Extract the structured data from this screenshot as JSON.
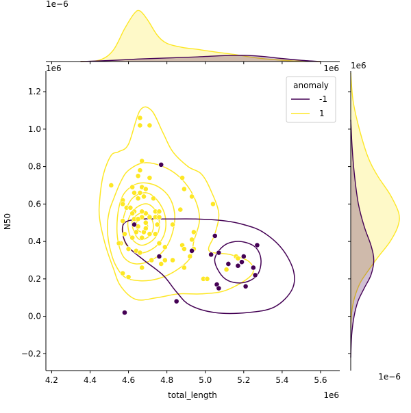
{
  "chart_data": {
    "type": "scatter",
    "xlabel": "total_length",
    "ylabel": "N50",
    "x_offset_label": "1e6",
    "y_offset_label": "1e6",
    "top_margin_offset_label": "1e−6",
    "right_margin_offset_label": "1e−6",
    "xlim": [
      4.17,
      5.7
    ],
    "ylim": [
      -0.29,
      1.31
    ],
    "x_ticks": [
      4.2,
      4.4,
      4.6,
      4.8,
      5.0,
      5.2,
      5.4,
      5.6
    ],
    "x_tick_labels": [
      "4.2",
      "4.4",
      "4.6",
      "4.8",
      "5.0",
      "5.2",
      "5.4",
      "5.6"
    ],
    "y_ticks": [
      -0.2,
      0.0,
      0.2,
      0.4,
      0.6,
      0.8,
      1.0,
      1.2
    ],
    "y_tick_labels": [
      "−0.2",
      "0.0",
      "0.2",
      "0.4",
      "0.6",
      "0.8",
      "1.0",
      "1.2"
    ],
    "grid": false,
    "legend": {
      "title": "anomaly",
      "placement": "top-right",
      "entries": [
        {
          "label": "-1",
          "color": "#440154"
        },
        {
          "label": "1",
          "color": "#fde725"
        }
      ]
    },
    "colors": {
      "anomaly": "#440154",
      "normal": "#fde725"
    },
    "series": [
      {
        "name": "1",
        "color": "#fde725",
        "points": [
          [
            4.66,
            1.06
          ],
          [
            4.66,
            1.02
          ],
          [
            4.71,
            1.02
          ],
          [
            4.67,
            0.83
          ],
          [
            4.66,
            0.78
          ],
          [
            4.71,
            0.74
          ],
          [
            4.65,
            0.75
          ],
          [
            4.88,
            0.74
          ],
          [
            4.51,
            0.7
          ],
          [
            4.62,
            0.69
          ],
          [
            4.67,
            0.69
          ],
          [
            4.69,
            0.68
          ],
          [
            4.66,
            0.66
          ],
          [
            4.63,
            0.66
          ],
          [
            4.89,
            0.68
          ],
          [
            4.93,
            0.64
          ],
          [
            4.73,
            0.63
          ],
          [
            4.68,
            0.64
          ],
          [
            4.65,
            0.63
          ],
          [
            4.57,
            0.62
          ],
          [
            4.57,
            0.6
          ],
          [
            4.59,
            0.58
          ],
          [
            4.61,
            0.58
          ],
          [
            4.63,
            0.56
          ],
          [
            4.69,
            0.55
          ],
          [
            4.67,
            0.56
          ],
          [
            4.67,
            0.53
          ],
          [
            4.71,
            0.53
          ],
          [
            4.74,
            0.53
          ],
          [
            4.76,
            0.53
          ],
          [
            4.74,
            0.56
          ],
          [
            4.76,
            0.56
          ],
          [
            4.62,
            0.55
          ],
          [
            4.63,
            0.52
          ],
          [
            4.65,
            0.52
          ],
          [
            4.65,
            0.48
          ],
          [
            4.69,
            0.5
          ],
          [
            4.64,
            0.45
          ],
          [
            4.68,
            0.45
          ],
          [
            4.71,
            0.44
          ],
          [
            4.74,
            0.44
          ],
          [
            4.67,
            0.42
          ],
          [
            4.62,
            0.42
          ],
          [
            4.58,
            0.44
          ],
          [
            4.56,
            0.39
          ],
          [
            4.55,
            0.39
          ],
          [
            4.6,
            0.36
          ],
          [
            4.64,
            0.35
          ],
          [
            4.66,
            0.34
          ],
          [
            4.76,
            0.39
          ],
          [
            4.79,
            0.37
          ],
          [
            4.88,
            0.38
          ],
          [
            4.89,
            0.36
          ],
          [
            4.93,
            0.41
          ],
          [
            4.94,
            0.45
          ],
          [
            4.94,
            0.36
          ],
          [
            4.92,
            0.32
          ],
          [
            4.83,
            0.49
          ],
          [
            4.87,
            0.57
          ],
          [
            4.75,
            0.49
          ],
          [
            4.72,
            0.3
          ],
          [
            4.77,
            0.28
          ],
          [
            4.79,
            0.3
          ],
          [
            4.83,
            0.3
          ],
          [
            4.67,
            0.26
          ],
          [
            4.89,
            0.26
          ],
          [
            4.57,
            0.23
          ],
          [
            4.6,
            0.21
          ],
          [
            4.99,
            0.2
          ],
          [
            5.01,
            0.2
          ],
          [
            5.04,
            0.6
          ],
          [
            5.16,
            0.32
          ],
          [
            5.17,
            0.31
          ],
          [
            5.11,
            0.25
          ],
          [
            4.57,
            0.51
          ],
          [
            4.69,
            0.47
          ]
        ]
      },
      {
        "name": "-1",
        "color": "#440154",
        "points": [
          [
            4.77,
            0.81
          ],
          [
            4.63,
            0.49
          ],
          [
            5.05,
            0.43
          ],
          [
            4.93,
            0.35
          ],
          [
            4.76,
            0.32
          ],
          [
            5.03,
            0.33
          ],
          [
            5.07,
            0.34
          ],
          [
            5.12,
            0.28
          ],
          [
            5.17,
            0.27
          ],
          [
            5.19,
            0.29
          ],
          [
            5.2,
            0.32
          ],
          [
            5.27,
            0.38
          ],
          [
            5.25,
            0.26
          ],
          [
            5.26,
            0.22
          ],
          [
            5.06,
            0.17
          ],
          [
            5.07,
            0.15
          ],
          [
            5.21,
            0.16
          ],
          [
            4.85,
            0.08
          ],
          [
            4.58,
            0.02
          ]
        ]
      }
    ],
    "kde_contours": {
      "1": [
        [
          [
            4.6,
            0.92
          ],
          [
            4.66,
            1.1
          ],
          [
            4.72,
            1.1
          ],
          [
            4.78,
            0.98
          ],
          [
            4.83,
            0.88
          ],
          [
            4.91,
            0.8
          ],
          [
            4.98,
            0.76
          ],
          [
            5.03,
            0.67
          ],
          [
            5.07,
            0.55
          ],
          [
            5.05,
            0.44
          ],
          [
            5.02,
            0.35
          ],
          [
            5.13,
            0.33
          ],
          [
            5.23,
            0.29
          ],
          [
            5.24,
            0.22
          ],
          [
            5.11,
            0.14
          ],
          [
            4.98,
            0.12
          ],
          [
            4.86,
            0.12
          ],
          [
            4.75,
            0.1
          ],
          [
            4.64,
            0.09
          ],
          [
            4.56,
            0.16
          ],
          [
            4.52,
            0.26
          ],
          [
            4.48,
            0.38
          ],
          [
            4.45,
            0.52
          ],
          [
            4.45,
            0.62
          ],
          [
            4.47,
            0.76
          ],
          [
            4.51,
            0.86
          ],
          [
            4.55,
            0.88
          ]
        ],
        [
          [
            4.52,
            0.62
          ],
          [
            4.56,
            0.72
          ],
          [
            4.6,
            0.78
          ],
          [
            4.68,
            0.82
          ],
          [
            4.78,
            0.8
          ],
          [
            4.87,
            0.74
          ],
          [
            4.94,
            0.64
          ],
          [
            4.97,
            0.52
          ],
          [
            4.94,
            0.4
          ],
          [
            4.92,
            0.31
          ],
          [
            4.84,
            0.24
          ],
          [
            4.75,
            0.2
          ],
          [
            4.66,
            0.19
          ],
          [
            4.58,
            0.21
          ],
          [
            4.53,
            0.28
          ],
          [
            4.5,
            0.38
          ],
          [
            4.49,
            0.48
          ],
          [
            4.5,
            0.56
          ]
        ],
        [
          [
            4.55,
            0.58
          ],
          [
            4.58,
            0.66
          ],
          [
            4.65,
            0.71
          ],
          [
            4.74,
            0.7
          ],
          [
            4.81,
            0.64
          ],
          [
            4.84,
            0.55
          ],
          [
            4.83,
            0.45
          ],
          [
            4.79,
            0.36
          ],
          [
            4.72,
            0.3
          ],
          [
            4.64,
            0.28
          ],
          [
            4.58,
            0.31
          ],
          [
            4.55,
            0.38
          ],
          [
            4.54,
            0.47
          ]
        ],
        [
          [
            4.58,
            0.55
          ],
          [
            4.62,
            0.63
          ],
          [
            4.69,
            0.66
          ],
          [
            4.75,
            0.62
          ],
          [
            4.79,
            0.54
          ],
          [
            4.79,
            0.45
          ],
          [
            4.75,
            0.38
          ],
          [
            4.68,
            0.34
          ],
          [
            4.62,
            0.35
          ],
          [
            4.58,
            0.4
          ],
          [
            4.57,
            0.48
          ]
        ],
        [
          [
            4.6,
            0.52
          ],
          [
            4.64,
            0.58
          ],
          [
            4.7,
            0.6
          ],
          [
            4.75,
            0.55
          ],
          [
            4.76,
            0.47
          ],
          [
            4.73,
            0.41
          ],
          [
            4.67,
            0.38
          ],
          [
            4.62,
            0.41
          ],
          [
            4.6,
            0.46
          ]
        ],
        [
          [
            4.62,
            0.51
          ],
          [
            4.66,
            0.55
          ],
          [
            4.71,
            0.54
          ],
          [
            4.73,
            0.48
          ],
          [
            4.71,
            0.43
          ],
          [
            4.66,
            0.41
          ],
          [
            4.63,
            0.45
          ]
        ],
        [
          [
            4.64,
            0.5
          ],
          [
            4.68,
            0.52
          ],
          [
            4.7,
            0.48
          ],
          [
            4.68,
            0.45
          ],
          [
            4.65,
            0.46
          ]
        ]
      ],
      "-1": [
        [
          [
            4.58,
            0.5
          ],
          [
            4.66,
            0.52
          ],
          [
            4.8,
            0.52
          ],
          [
            4.95,
            0.52
          ],
          [
            5.1,
            0.51
          ],
          [
            5.2,
            0.49
          ],
          [
            5.3,
            0.45
          ],
          [
            5.4,
            0.36
          ],
          [
            5.46,
            0.24
          ],
          [
            5.45,
            0.14
          ],
          [
            5.36,
            0.05
          ],
          [
            5.22,
            0.02
          ],
          [
            5.05,
            0.02
          ],
          [
            4.92,
            0.06
          ],
          [
            4.85,
            0.13
          ],
          [
            4.78,
            0.22
          ],
          [
            4.68,
            0.3
          ],
          [
            4.6,
            0.37
          ],
          [
            4.57,
            0.44
          ]
        ],
        [
          [
            5.05,
            0.31
          ],
          [
            5.1,
            0.38
          ],
          [
            5.18,
            0.4
          ],
          [
            5.26,
            0.37
          ],
          [
            5.29,
            0.3
          ],
          [
            5.27,
            0.22
          ],
          [
            5.2,
            0.18
          ],
          [
            5.12,
            0.19
          ],
          [
            5.07,
            0.24
          ]
        ]
      ]
    },
    "marginal_x": {
      "1": {
        "x": [
          4.35,
          4.45,
          4.52,
          4.58,
          4.63,
          4.66,
          4.7,
          4.75,
          4.8,
          4.88,
          4.96,
          5.05,
          5.15,
          5.25,
          5.35,
          5.45,
          5.6
        ],
        "density": [
          0.0,
          0.03,
          0.22,
          0.65,
          0.95,
          1.0,
          0.82,
          0.52,
          0.36,
          0.28,
          0.24,
          0.19,
          0.14,
          0.08,
          0.04,
          0.015,
          0.0
        ]
      },
      "-1": {
        "x": [
          4.35,
          4.5,
          4.65,
          4.8,
          4.95,
          5.05,
          5.15,
          5.22,
          5.3,
          5.4,
          5.5,
          5.6
        ],
        "density": [
          0.0,
          0.02,
          0.05,
          0.07,
          0.09,
          0.11,
          0.12,
          0.12,
          0.1,
          0.06,
          0.025,
          0.0
        ]
      }
    },
    "marginal_y": {
      "1": {
        "y": [
          1.3,
          1.15,
          1.0,
          0.85,
          0.75,
          0.65,
          0.55,
          0.48,
          0.4,
          0.32,
          0.25,
          0.18,
          0.1,
          0.02,
          -0.06
        ],
        "density": [
          0.0,
          0.05,
          0.18,
          0.36,
          0.56,
          0.82,
          1.0,
          0.98,
          0.82,
          0.58,
          0.38,
          0.2,
          0.08,
          0.02,
          0.0
        ]
      },
      "-1": {
        "y": [
          1.05,
          0.9,
          0.75,
          0.6,
          0.48,
          0.38,
          0.3,
          0.22,
          0.15,
          0.08,
          0.0,
          -0.1,
          -0.22
        ],
        "density": [
          0.0,
          0.03,
          0.08,
          0.16,
          0.28,
          0.42,
          0.48,
          0.42,
          0.28,
          0.15,
          0.07,
          0.02,
          0.0
        ]
      }
    }
  }
}
